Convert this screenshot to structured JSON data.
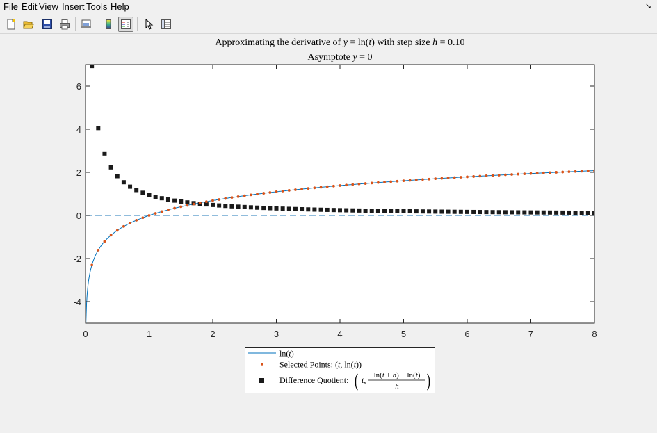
{
  "menu": {
    "items": [
      "File",
      "Edit",
      "View",
      "Insert",
      "Tools",
      "Help"
    ],
    "corner": "↘"
  },
  "toolbar": {
    "buttons": [
      "new-figure-icon",
      "open-file-icon",
      "save-icon",
      "print-icon",
      "print-preview-icon",
      "colorbar-icon",
      "legend-icon",
      "pointer-icon",
      "property-inspector-icon"
    ]
  },
  "colors": {
    "line": "#0072BD",
    "points": "#D95319",
    "quotient": "#1a1a1a",
    "asymptote": "#4d94c8"
  },
  "chart_data": {
    "type": "line",
    "title_line1": {
      "prefix": "Approximating the derivative of ",
      "yvar": "y",
      "eq": " = ln(",
      "tvar": "t",
      "close": ") with step size ",
      "hvar": "h",
      "suffix": " = 0.10"
    },
    "title_line2": {
      "prefix": "Asymptote ",
      "yvar": "y",
      "suffix": " = 0"
    },
    "xlim": [
      0,
      8
    ],
    "ylim": [
      -5,
      7
    ],
    "xticks": [
      0,
      1,
      2,
      3,
      4,
      5,
      6,
      7,
      8
    ],
    "yticks": [
      -4,
      -2,
      0,
      2,
      4,
      6
    ],
    "step": 0.1,
    "sample_t_start": 0.1,
    "sample_t_end": 8.0,
    "sample_t_count": 80,
    "asymptote_y": 0,
    "grid": false,
    "legend_position": "bottom-outside",
    "legend": {
      "line": "ln(t)",
      "points_prefix": "Selected Points: ",
      "points_math": "(t, ln(t))",
      "quotient_prefix": "Difference Quotient: ",
      "quotient_num": "ln(t + h) − ln(t)",
      "quotient_den": "h",
      "quotient_lead": "t,"
    },
    "series": [
      {
        "name": "ln(t)",
        "function": "ln(t)"
      },
      {
        "name": "Selected Points: (t, ln(t))",
        "function": "ln(t)"
      },
      {
        "name": "Difference Quotient",
        "function": "(ln(t+h)-ln(t))/h"
      }
    ]
  }
}
